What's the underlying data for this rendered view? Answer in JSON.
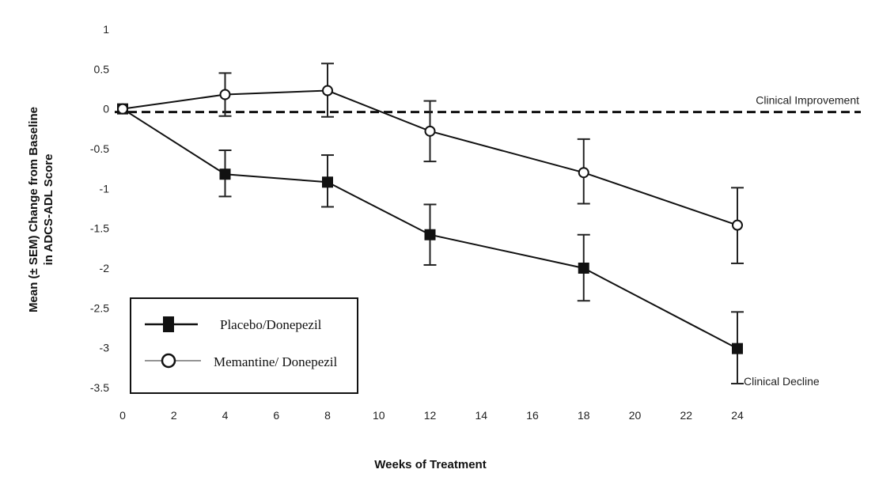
{
  "chart_data": {
    "type": "line",
    "title": "",
    "xlabel": "Weeks of Treatment",
    "ylabel_lines": [
      "Mean (± SEM) Change from Baseline",
      "in ADCS-ADL Score"
    ],
    "xlim": [
      0,
      24
    ],
    "ylim": [
      -3.5,
      1
    ],
    "x_ticks": [
      0,
      2,
      4,
      6,
      8,
      10,
      12,
      14,
      16,
      18,
      20,
      22,
      24
    ],
    "x_tick_labels": [
      "0",
      "2",
      "4",
      "6",
      "8",
      "10",
      "12",
      "14",
      "16",
      "18",
      "20",
      "22",
      "24"
    ],
    "y_ticks": [
      1,
      0.5,
      0,
      -0.5,
      -1,
      -1.5,
      -2,
      -2.5,
      -3,
      -3.5
    ],
    "y_tick_labels": [
      "1",
      "0.5",
      "0",
      "-0.5",
      "-1",
      "-1.5",
      "-2",
      "-2.5",
      "-3",
      "-3.5"
    ],
    "grid": false,
    "legend_position": "bottom-left",
    "reference_line": {
      "y": 0,
      "style": "dashed"
    },
    "annotations": [
      {
        "text": "Clinical Improvement",
        "x": 24,
        "y": 0,
        "anchor": "above-right"
      },
      {
        "text": "Clinical Decline",
        "x": 24,
        "y": -3.45,
        "anchor": "right"
      }
    ],
    "series": [
      {
        "name": "Placebo/Donepezil",
        "marker": "filled-square",
        "x": [
          0,
          4,
          8,
          12,
          18,
          24
        ],
        "values": [
          0,
          -0.82,
          -0.92,
          -1.58,
          -2.0,
          -3.01
        ],
        "error_upper": [
          0,
          -0.52,
          -0.58,
          -1.2,
          -1.58,
          -2.55
        ],
        "error_lower": [
          0,
          -1.1,
          -1.23,
          -1.96,
          -2.41,
          -3.45
        ]
      },
      {
        "name": "Memantine/ Donepezil",
        "marker": "open-circle",
        "x": [
          0,
          4,
          8,
          12,
          18,
          24
        ],
        "values": [
          0,
          0.18,
          0.23,
          -0.28,
          -0.8,
          -1.46
        ],
        "error_upper": [
          0,
          0.45,
          0.57,
          0.1,
          -0.38,
          -0.99
        ],
        "error_lower": [
          0,
          -0.09,
          -0.1,
          -0.66,
          -1.19,
          -1.94
        ]
      }
    ]
  }
}
